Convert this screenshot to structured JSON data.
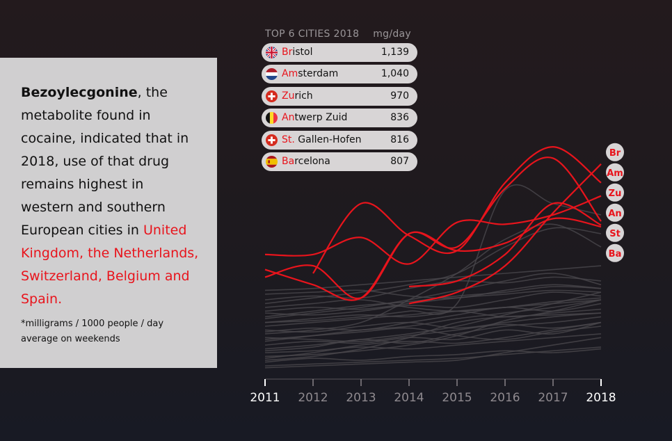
{
  "info": {
    "term": "Bezoylecgonine",
    "text_before": ", the metabolite found in cocaine, indicated that in 2018, use of that drug remains highest in western and southern European cities in ",
    "highlight": "United Kingdom, the Netherlands, Switzerland, Belgium and Spain.",
    "footnote": "*milligrams / 1000 people / day average on weekends"
  },
  "top6": {
    "title": "TOP 6 CITIES 2018",
    "unit": "mg/day",
    "rows": [
      {
        "prefix": "Br",
        "rest": "istol",
        "value": "1,139",
        "flag": "uk-flag-icon"
      },
      {
        "prefix": "Am",
        "rest": "sterdam",
        "value": "1,040",
        "flag": "netherlands-flag-icon"
      },
      {
        "prefix": "Zu",
        "rest": "rich",
        "value": "970",
        "flag": "switzerland-flag-icon"
      },
      {
        "prefix": "An",
        "rest": "twerp Zuid",
        "value": "836",
        "flag": "belgium-flag-icon"
      },
      {
        "prefix": "St.",
        "rest": " Gallen-Hofen",
        "value": "816",
        "flag": "switzerland-flag-icon"
      },
      {
        "prefix": "Ba",
        "rest": "rcelona",
        "value": "807",
        "flag": "spain-flag-icon"
      }
    ]
  },
  "chart_data": {
    "type": "line",
    "x": [
      2011,
      2012,
      2013,
      2014,
      2015,
      2016,
      2017,
      2018
    ],
    "highlight_x": "2018",
    "ylim": [
      0,
      1400
    ],
    "grid": false,
    "highlight_color": "#e8141c",
    "background_color": "#4a474c",
    "highlight_series": [
      {
        "name": "Br",
        "values": [
          null,
          null,
          null,
          400,
          460,
          600,
          880,
          1139
        ]
      },
      {
        "name": "Am",
        "values": [
          null,
          560,
          930,
          760,
          680,
          1040,
          1230,
          1040
        ]
      },
      {
        "name": "Zu",
        "values": [
          660,
          660,
          750,
          610,
          830,
          820,
          870,
          970
        ]
      },
      {
        "name": "An",
        "values": [
          540,
          600,
          430,
          770,
          700,
          1010,
          1170,
          836
        ]
      },
      {
        "name": "St",
        "values": [
          null,
          null,
          null,
          490,
          520,
          660,
          930,
          816
        ]
      },
      {
        "name": "Ba",
        "values": [
          580,
          500,
          430,
          770,
          680,
          720,
          850,
          807
        ]
      }
    ],
    "background_series": [
      [
        90,
        110,
        100,
        120,
        130,
        150,
        140,
        160
      ],
      [
        150,
        170,
        210,
        190,
        240,
        280,
        300,
        330
      ],
      [
        250,
        270,
        260,
        300,
        340,
        380,
        360,
        400
      ],
      [
        320,
        350,
        380,
        420,
        470,
        520,
        560,
        500
      ],
      [
        400,
        430,
        460,
        500,
        560,
        700,
        800,
        770
      ],
      [
        200,
        230,
        260,
        280,
        320,
        350,
        380,
        420
      ],
      [
        120,
        130,
        150,
        180,
        230,
        310,
        360,
        420
      ],
      [
        70,
        80,
        90,
        100,
        110,
        130,
        150,
        170
      ],
      [
        180,
        200,
        190,
        220,
        210,
        260,
        240,
        300
      ],
      [
        300,
        320,
        340,
        330,
        360,
        380,
        400,
        420
      ],
      [
        260,
        250,
        280,
        300,
        270,
        300,
        330,
        350
      ],
      [
        350,
        340,
        360,
        390,
        380,
        420,
        460,
        440
      ],
      [
        420,
        440,
        430,
        480,
        520,
        510,
        540,
        520
      ],
      [
        100,
        120,
        160,
        220,
        300,
        330,
        340,
        350
      ],
      [
        470,
        480,
        500,
        520,
        540,
        560,
        580,
        600
      ],
      [
        240,
        260,
        300,
        420,
        560,
        740,
        820,
        700
      ],
      [
        160,
        180,
        210,
        240,
        280,
        340,
        400,
        460
      ],
      [
        280,
        300,
        320,
        340,
        360,
        330,
        350,
        370
      ],
      [
        60,
        70,
        80,
        90,
        100,
        140,
        180,
        220
      ],
      [
        380,
        400,
        420,
        380,
        360,
        380,
        410,
        430
      ],
      [
        220,
        210,
        200,
        230,
        260,
        290,
        270,
        300
      ],
      [
        330,
        360,
        390,
        410,
        440,
        460,
        490,
        480
      ],
      [
        140,
        150,
        170,
        160,
        180,
        200,
        220,
        240
      ],
      [
        300,
        310,
        330,
        360,
        400,
        1000,
        930,
        870
      ],
      [
        450,
        460,
        470,
        440,
        430,
        470,
        500,
        480
      ],
      [
        210,
        230,
        250,
        270,
        230,
        210,
        250,
        280
      ],
      [
        110,
        140,
        180,
        200,
        190,
        220,
        260,
        300
      ],
      [
        360,
        380,
        370,
        400,
        430,
        450,
        470,
        460
      ]
    ]
  }
}
